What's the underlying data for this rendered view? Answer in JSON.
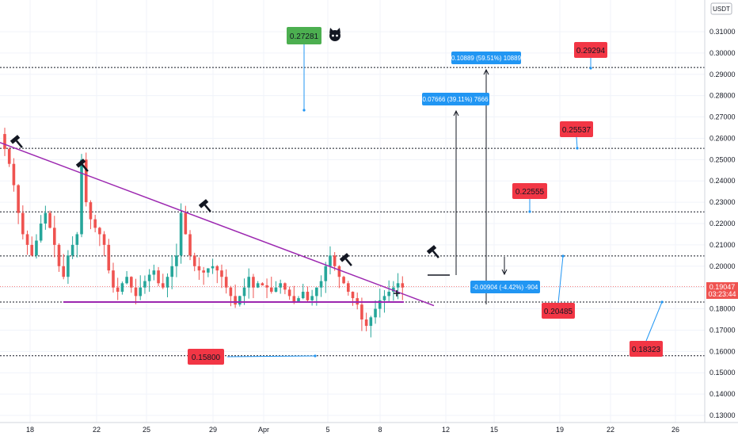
{
  "colors": {
    "up": "#26a69a",
    "down": "#ef5350",
    "trendline": "#9c27b0",
    "support_line": "#9c27b0",
    "level_line": "#131722",
    "measure": "#2196f3",
    "red_label": "#f23645",
    "green_label": "#4caf50",
    "current_price": "#ef5350"
  },
  "currency": "USDT",
  "current_price": {
    "value": "0.19047",
    "countdown": "03:23:44"
  },
  "chart_data": {
    "type": "candlestick",
    "ylim": [
      0.125,
      0.322
    ],
    "y_ticks": [
      "0.31000",
      "0.30000",
      "0.29000",
      "0.28000",
      "0.27000",
      "0.26000",
      "0.25000",
      "0.24000",
      "0.23000",
      "0.22000",
      "0.21000",
      "0.20000",
      "0.19000",
      "0.18000",
      "0.17000",
      "0.16000",
      "0.15000",
      "0.14000",
      "0.13000"
    ],
    "x_ticks": [
      "18",
      "22",
      "25",
      "29",
      "Apr",
      "5",
      "8",
      "12",
      "15",
      "19",
      "22",
      "26"
    ],
    "grid": true,
    "horizontal_levels": [
      0.2932,
      0.2553,
      0.2255,
      0.2048,
      0.1832,
      0.158
    ],
    "support_level": 0.1832,
    "trendline": {
      "from": 0.258,
      "to": 0.1815
    },
    "price_path": [
      0.262,
      0.255,
      0.248,
      0.238,
      0.225,
      0.215,
      0.21,
      0.205,
      0.212,
      0.22,
      0.225,
      0.218,
      0.21,
      0.2,
      0.195,
      0.205,
      0.21,
      0.215,
      0.25,
      0.23,
      0.222,
      0.218,
      0.215,
      0.21,
      0.198,
      0.19,
      0.188,
      0.192,
      0.195,
      0.19,
      0.186,
      0.19,
      0.193,
      0.196,
      0.198,
      0.192,
      0.19,
      0.195,
      0.2,
      0.205,
      0.225,
      0.215,
      0.205,
      0.2,
      0.198,
      0.197,
      0.199,
      0.2,
      0.198,
      0.195,
      0.19,
      0.186,
      0.182,
      0.186,
      0.19,
      0.195,
      0.19,
      0.192,
      0.191,
      0.19,
      0.188,
      0.19,
      0.192,
      0.189,
      0.186,
      0.183,
      0.185,
      0.188,
      0.184,
      0.186,
      0.19,
      0.193,
      0.2,
      0.205,
      0.2,
      0.195,
      0.192,
      0.188,
      0.185,
      0.182,
      0.175,
      0.172,
      0.176,
      0.18,
      0.184,
      0.186,
      0.188,
      0.19,
      0.192,
      0.19
    ],
    "labels": {
      "green": "0.27281",
      "red": [
        "0.29294",
        "0.25537",
        "0.22555",
        "0.20485",
        "0.18323",
        "0.15800"
      ],
      "measures": [
        "0.10889 (59.51%) 10889",
        "0.07666 (39.11%) 7666",
        "-0.00904 (-4.42%) -904"
      ]
    }
  }
}
